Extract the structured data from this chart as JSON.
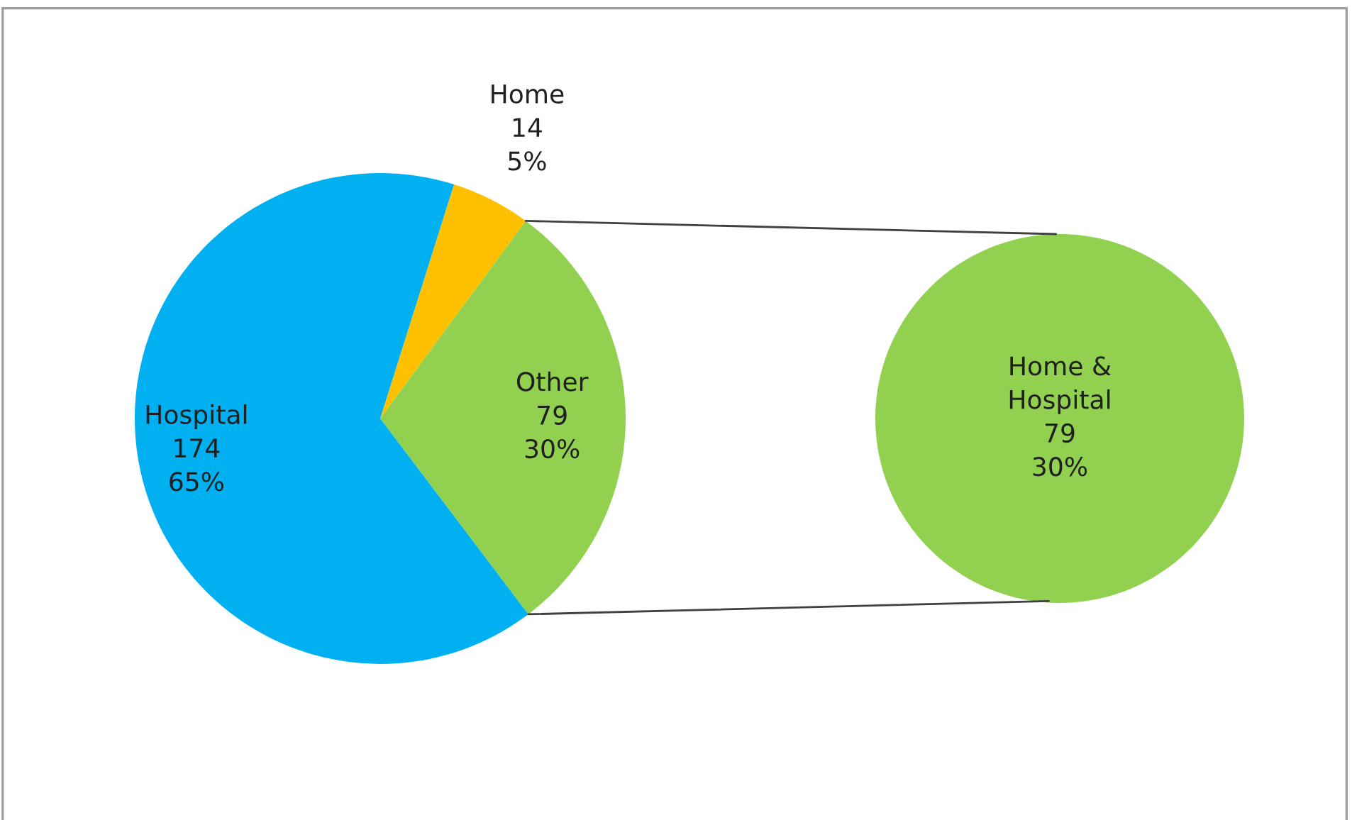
{
  "chart_data": [
    {
      "type": "pie",
      "categories": [
        "Home",
        "Other",
        "Hospital"
      ],
      "values": [
        14,
        79,
        174
      ],
      "colors": [
        "#ffc000",
        "#92d050",
        "#00b0f0"
      ],
      "value_labels": [
        "14\n5%",
        "79\n30%",
        "174\n65%"
      ]
    },
    {
      "type": "pie",
      "categories": [
        "Home &\nHospital"
      ],
      "values": [
        79
      ],
      "colors": [
        "#92d050"
      ],
      "value_labels": [
        "79\n30%"
      ]
    }
  ]
}
